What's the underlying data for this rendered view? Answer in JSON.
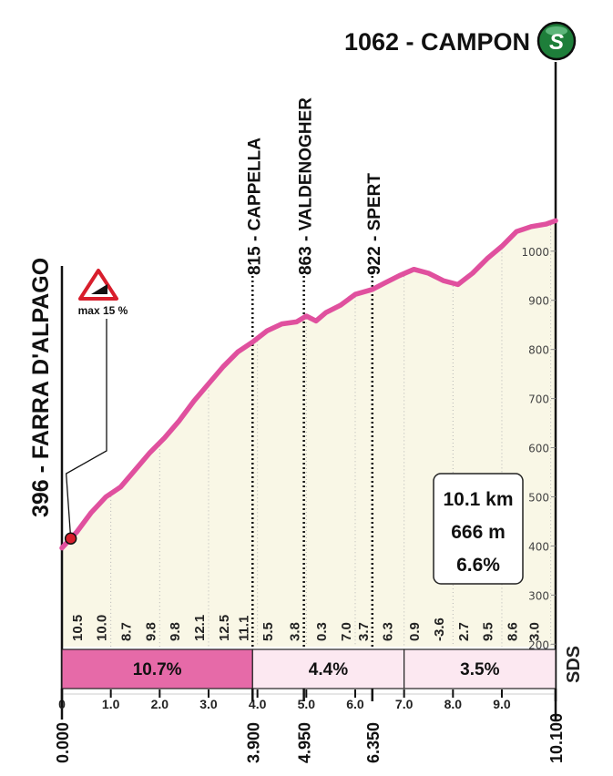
{
  "summary": {
    "start_label": "396 - FARRA D'ALPAGO",
    "finish_label": "1062 - CAMPON",
    "finish_icon": "s-circle-icon",
    "brand": "SDS",
    "stats": [
      "10.1 km",
      "666 m",
      "6.6%"
    ],
    "warning_sign": "max 15 %"
  },
  "colors": {
    "profile_line": "#e0509e",
    "profile_fill": "#f9f7e6",
    "segment_dark": "#e66aa8",
    "segment_light": "#fce8f1"
  },
  "chart_data": {
    "type": "area",
    "xlabel": "",
    "ylabel": "",
    "xlim": [
      0,
      10.1
    ],
    "ylim": [
      195,
      1070
    ],
    "x_ticks": [
      "0",
      "1.0",
      "2.0",
      "3.0",
      "4.0",
      "5.0",
      "6.0",
      "7.0",
      "8.0",
      "9.0"
    ],
    "y_ticks": [
      "200",
      "300",
      "400",
      "500",
      "600",
      "700",
      "800",
      "900",
      "1000"
    ],
    "profile": [
      [
        0,
        396
      ],
      [
        0.3,
        428
      ],
      [
        0.6,
        468
      ],
      [
        0.9,
        500
      ],
      [
        1.2,
        520
      ],
      [
        1.5,
        555
      ],
      [
        1.8,
        590
      ],
      [
        2.1,
        620
      ],
      [
        2.4,
        655
      ],
      [
        2.7,
        695
      ],
      [
        3.0,
        730
      ],
      [
        3.3,
        765
      ],
      [
        3.6,
        795
      ],
      [
        3.9,
        815
      ],
      [
        4.2,
        838
      ],
      [
        4.5,
        852
      ],
      [
        4.8,
        856
      ],
      [
        5.0,
        868
      ],
      [
        5.2,
        858
      ],
      [
        5.4,
        875
      ],
      [
        5.7,
        890
      ],
      [
        6.0,
        912
      ],
      [
        6.35,
        922
      ],
      [
        6.6,
        935
      ],
      [
        6.9,
        950
      ],
      [
        7.2,
        963
      ],
      [
        7.5,
        955
      ],
      [
        7.8,
        940
      ],
      [
        8.1,
        932
      ],
      [
        8.4,
        955
      ],
      [
        8.7,
        985
      ],
      [
        9.0,
        1010
      ],
      [
        9.3,
        1040
      ],
      [
        9.6,
        1050
      ],
      [
        9.9,
        1055
      ],
      [
        10.1,
        1062
      ]
    ],
    "waypoints": [
      {
        "label": "815 - CAPPELLA",
        "km": 3.9
      },
      {
        "label": "863 - VALDENOGHER",
        "km": 4.95
      },
      {
        "label": "922 - SPERT",
        "km": 6.35
      }
    ],
    "km_gradients": [
      {
        "km": 0.5,
        "value": "10.5"
      },
      {
        "km": 1.0,
        "value": "10.0"
      },
      {
        "km": 1.5,
        "value": "8.7"
      },
      {
        "km": 2.0,
        "value": "9.8"
      },
      {
        "km": 2.5,
        "value": "9.8"
      },
      {
        "km": 3.0,
        "value": "12.1"
      },
      {
        "km": 3.5,
        "value": "12.5"
      },
      {
        "km": 3.9,
        "value": "11.1"
      },
      {
        "km": 4.4,
        "value": "5.5"
      },
      {
        "km": 4.95,
        "value": "3.8"
      },
      {
        "km": 5.5,
        "value": "0.3"
      },
      {
        "km": 6.0,
        "value": "7.0"
      },
      {
        "km": 6.35,
        "value": "3.7"
      },
      {
        "km": 6.85,
        "value": "6.3"
      },
      {
        "km": 7.4,
        "value": "0.9"
      },
      {
        "km": 7.9,
        "value": "-3.6"
      },
      {
        "km": 8.4,
        "value": "2.7"
      },
      {
        "km": 8.9,
        "value": "9.5"
      },
      {
        "km": 9.4,
        "value": "8.6"
      },
      {
        "km": 9.85,
        "value": "3.0"
      }
    ],
    "segments": [
      {
        "from": 0,
        "to": 3.9,
        "label": "10.7%",
        "style": "dark"
      },
      {
        "from": 3.9,
        "to": 7.0,
        "label": "4.4%",
        "style": "light"
      },
      {
        "from": 7.0,
        "to": 10.1,
        "label": "3.5%",
        "style": "light"
      }
    ],
    "km_markers": [
      {
        "km": 0,
        "label": "0.000"
      },
      {
        "km": 3.9,
        "label": "3.900"
      },
      {
        "km": 4.95,
        "label": "4.950"
      },
      {
        "km": 6.35,
        "label": "6.350"
      },
      {
        "km": 10.1,
        "label": "10.100"
      }
    ],
    "max_gradient_marker": {
      "km": 0.18,
      "label": "max 15 %"
    }
  }
}
